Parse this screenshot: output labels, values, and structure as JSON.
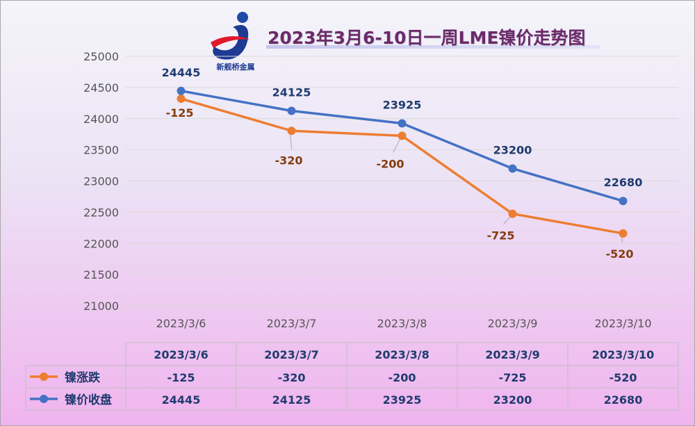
{
  "title": "2023年3月6-10日一周LME镍价走势图",
  "logo_text": "新舰桥金属",
  "colors": {
    "closing": "#4472c4",
    "change": "#ed7d31",
    "title": "#6b2a6b"
  },
  "chart_data": {
    "type": "line",
    "title": "2023年3月6-10日一周LME镍价走势图",
    "categories": [
      "2023/3/6",
      "2023/3/7",
      "2023/3/8",
      "2023/3/9",
      "2023/3/10"
    ],
    "yticks": [
      "21000",
      "21500",
      "22000",
      "22500",
      "23000",
      "23500",
      "24000",
      "24500",
      "25000"
    ],
    "ylim": [
      21000,
      25000
    ],
    "grid": true,
    "legend": "table-left",
    "series": [
      {
        "name": "镍价收盘",
        "values": [
          24445,
          24125,
          23925,
          23200,
          22680
        ],
        "labels": [
          "24445",
          "24125",
          "23925",
          "23200",
          "22680"
        ],
        "color": "#4472c4"
      },
      {
        "name": "镍涨跌",
        "plotted_values": [
          24320,
          23805,
          23725,
          22475,
          22160
        ],
        "values": [
          -125,
          -320,
          -200,
          -725,
          -520
        ],
        "labels": [
          "-125",
          "-320",
          "-200",
          "-725",
          "-520"
        ],
        "color": "#ed7d31"
      }
    ]
  },
  "data_table": {
    "headers": [
      "2023/3/6",
      "2023/3/7",
      "2023/3/8",
      "2023/3/9",
      "2023/3/10"
    ],
    "rows": [
      {
        "name": "镍涨跌",
        "cells": [
          "-125",
          "-320",
          "-200",
          "-725",
          "-520"
        ]
      },
      {
        "name": "镍价收盘",
        "cells": [
          "24445",
          "24125",
          "23925",
          "23200",
          "22680"
        ]
      }
    ]
  }
}
